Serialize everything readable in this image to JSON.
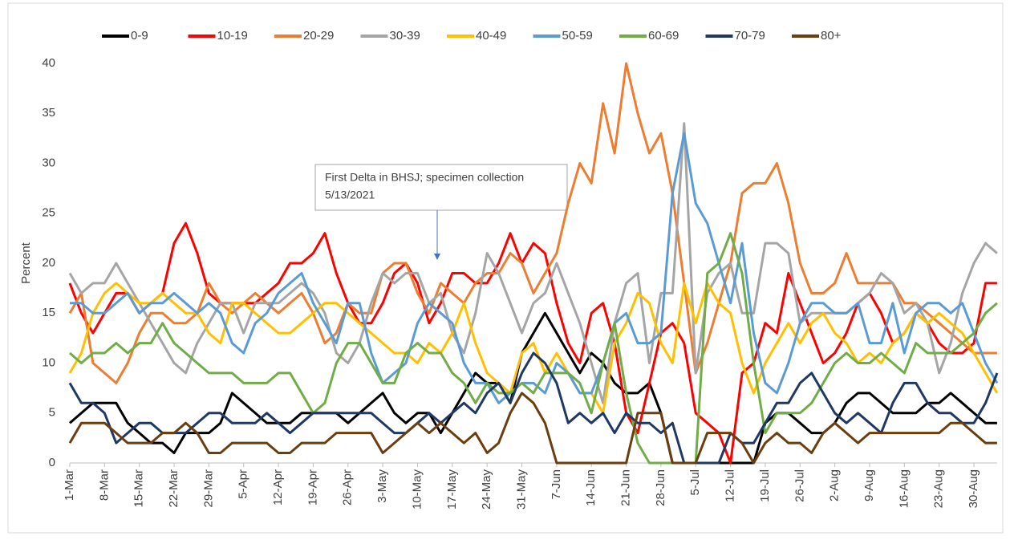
{
  "chart_data": {
    "type": "line",
    "ylabel": "Percent",
    "annotation": [
      "First Delta in BHSJ; specimen collection",
      "5/13/2021"
    ],
    "legend": "top",
    "ylim": [
      0,
      40
    ],
    "yticks": [
      0,
      5,
      10,
      15,
      20,
      25,
      30,
      35,
      40
    ],
    "categories": [
      "1-Mar",
      null,
      null,
      "8-Mar",
      null,
      null,
      "15-Mar",
      null,
      null,
      "22-Mar",
      null,
      null,
      "29-Mar",
      null,
      null,
      "5-Apr",
      null,
      null,
      "12-Apr",
      null,
      null,
      "19-Apr",
      null,
      null,
      "26-Apr",
      null,
      null,
      "3-May",
      null,
      null,
      "10-May",
      null,
      null,
      "17-May",
      null,
      null,
      "24-May",
      null,
      null,
      "31-May",
      null,
      null,
      "7-Jun",
      null,
      null,
      "14-Jun",
      null,
      null,
      "21-Jun",
      null,
      null,
      "28-Jun",
      null,
      null,
      "5-Jul",
      null,
      null,
      "12-Jul",
      null,
      null,
      "19-Jul",
      null,
      null,
      "26-Jul",
      null,
      null,
      "2-Aug",
      null,
      null,
      "9-Aug",
      null,
      null,
      "16-Aug",
      null,
      null,
      "23-Aug",
      null,
      null,
      "30-Aug",
      null,
      null
    ],
    "series": [
      {
        "name": "0-9",
        "color": "#000000",
        "values": [
          4,
          5,
          6,
          6,
          6,
          4,
          3,
          2,
          2,
          1,
          3,
          3,
          3,
          4,
          7,
          6,
          5,
          4,
          4,
          4,
          5,
          5,
          5,
          5,
          4,
          5,
          6,
          7,
          5,
          4,
          5,
          5,
          3,
          5,
          7,
          9,
          8,
          8,
          6,
          11,
          13,
          15,
          13,
          11,
          9,
          11,
          10,
          8,
          7,
          7,
          8,
          5,
          0,
          0,
          0,
          0,
          0,
          0,
          0,
          0,
          4,
          5,
          5,
          4,
          3,
          3,
          4,
          6,
          7,
          7,
          6,
          5,
          5,
          5,
          6,
          6,
          7,
          6,
          5,
          4,
          4
        ]
      },
      {
        "name": "10-19",
        "color": "#ff0000",
        "values": [
          18,
          15,
          13,
          15,
          17,
          17,
          15,
          16,
          17,
          22,
          24,
          21,
          17,
          16,
          16,
          16,
          16,
          17,
          18,
          20,
          20,
          21,
          23,
          19,
          16,
          14,
          14,
          16,
          19,
          20,
          18,
          14,
          16,
          19,
          19,
          18,
          18,
          20,
          23,
          20,
          22,
          21,
          16,
          12,
          10,
          15,
          16,
          12,
          5,
          3,
          8,
          13,
          14,
          12,
          5,
          4,
          3,
          0,
          9,
          10,
          14,
          13,
          19,
          16,
          13,
          10,
          11,
          13,
          16,
          17,
          15,
          12,
          13,
          15,
          14,
          12,
          11,
          11,
          12,
          18,
          18
        ]
      },
      {
        "name": "20-29",
        "color": "#ed7d31",
        "values": [
          15,
          17,
          10,
          9,
          8,
          10,
          13,
          15,
          15,
          14,
          14,
          15,
          18,
          16,
          15,
          16,
          17,
          16,
          15,
          16,
          17,
          15,
          12,
          13,
          16,
          15,
          15,
          19,
          20,
          20,
          17,
          15,
          18,
          17,
          16,
          18,
          19,
          19,
          21,
          20,
          17,
          19,
          21,
          26,
          30,
          28,
          36,
          31,
          40,
          35,
          31,
          33,
          27,
          18,
          9,
          12,
          16,
          20,
          27,
          28,
          28,
          30,
          26,
          20,
          17,
          17,
          18,
          21,
          18,
          18,
          18,
          18,
          16,
          16,
          15,
          14,
          13,
          12,
          11,
          11,
          11
        ]
      },
      {
        "name": "30-39",
        "color": "#a5a5a5",
        "values": [
          19,
          17,
          18,
          18,
          20,
          18,
          16,
          14,
          12,
          10,
          9,
          12,
          14,
          16,
          16,
          13,
          16,
          16,
          16,
          17,
          18,
          17,
          15,
          11,
          10,
          12,
          16,
          19,
          18,
          19,
          19,
          16,
          17,
          13,
          11,
          15,
          21,
          19,
          16,
          13,
          16,
          17,
          20,
          17,
          14,
          10,
          6,
          14,
          18,
          19,
          10,
          17,
          17,
          34,
          9,
          17,
          19,
          20,
          15,
          15,
          22,
          22,
          21,
          14,
          15,
          15,
          15,
          15,
          16,
          17,
          19,
          18,
          15,
          16,
          14,
          9,
          12,
          17,
          20,
          22,
          21
        ]
      },
      {
        "name": "40-49",
        "color": "#ffc000",
        "values": [
          9,
          11,
          15,
          17,
          18,
          17,
          16,
          16,
          17,
          16,
          15,
          15,
          13,
          12,
          16,
          16,
          15,
          14,
          13,
          13,
          14,
          15,
          16,
          16,
          15,
          14,
          13,
          12,
          11,
          11,
          10,
          12,
          11,
          13,
          16,
          12,
          9,
          8,
          7,
          11,
          12,
          9,
          11,
          9,
          7,
          7,
          5,
          12,
          14,
          17,
          16,
          12,
          10,
          18,
          14,
          18,
          16,
          15,
          10,
          7,
          10,
          12,
          14,
          12,
          14,
          15,
          13,
          12,
          10,
          11,
          10,
          12,
          13,
          15,
          14,
          15,
          14,
          13,
          11,
          9,
          7
        ]
      },
      {
        "name": "50-59",
        "color": "#5b9bd5",
        "values": [
          16,
          16,
          15,
          15,
          16,
          17,
          15,
          16,
          16,
          17,
          16,
          15,
          16,
          15,
          12,
          11,
          14,
          15,
          17,
          18,
          19,
          16,
          14,
          12,
          16,
          16,
          11,
          8,
          9,
          10,
          14,
          16,
          15,
          14,
          10,
          8,
          8,
          6,
          7,
          8,
          8,
          7,
          10,
          9,
          7,
          7,
          10,
          14,
          15,
          12,
          12,
          13,
          27,
          33,
          26,
          24,
          20,
          16,
          22,
          13,
          8,
          7,
          10,
          14,
          16,
          16,
          15,
          15,
          16,
          12,
          12,
          16,
          11,
          15,
          16,
          16,
          15,
          16,
          13,
          10,
          8
        ]
      },
      {
        "name": "60-69",
        "color": "#70ad47",
        "values": [
          11,
          10,
          11,
          11,
          12,
          11,
          12,
          12,
          14,
          12,
          11,
          10,
          9,
          9,
          9,
          8,
          8,
          8,
          9,
          9,
          7,
          5,
          6,
          10,
          12,
          12,
          10,
          8,
          8,
          11,
          12,
          11,
          11,
          9,
          8,
          6,
          8,
          7,
          7,
          8,
          7,
          9,
          9,
          9,
          8,
          5,
          10,
          14,
          7,
          2,
          0,
          0,
          0,
          0,
          0,
          19,
          20,
          23,
          19,
          10,
          3,
          5,
          5,
          5,
          6,
          8,
          10,
          11,
          10,
          10,
          11,
          10,
          9,
          12,
          11,
          11,
          11,
          12,
          13,
          15,
          16
        ]
      },
      {
        "name": "70-79",
        "color": "#1f3864",
        "values": [
          8,
          6,
          6,
          5,
          2,
          3,
          4,
          4,
          3,
          3,
          3,
          4,
          5,
          5,
          4,
          4,
          4,
          5,
          4,
          3,
          4,
          5,
          5,
          5,
          5,
          5,
          5,
          4,
          3,
          3,
          4,
          5,
          4,
          5,
          6,
          5,
          7,
          8,
          6,
          9,
          11,
          10,
          8,
          4,
          5,
          4,
          5,
          3,
          5,
          4,
          4,
          3,
          4,
          0,
          0,
          0,
          0,
          3,
          2,
          2,
          4,
          6,
          6,
          8,
          9,
          7,
          5,
          4,
          5,
          4,
          3,
          6,
          8,
          8,
          6,
          5,
          5,
          4,
          4,
          6,
          9
        ]
      },
      {
        "name": "80+",
        "color": "#6b3e0f",
        "values": [
          2,
          4,
          4,
          4,
          3,
          2,
          2,
          2,
          3,
          3,
          4,
          3,
          1,
          1,
          2,
          2,
          2,
          2,
          1,
          1,
          2,
          2,
          2,
          3,
          3,
          3,
          3,
          1,
          2,
          3,
          4,
          3,
          4,
          3,
          2,
          3,
          1,
          2,
          5,
          7,
          6,
          4,
          0,
          0,
          0,
          0,
          0,
          0,
          0,
          5,
          5,
          5,
          0,
          0,
          0,
          3,
          3,
          3,
          2,
          0,
          2,
          3,
          2,
          2,
          1,
          3,
          4,
          3,
          2,
          3,
          3,
          3,
          3,
          3,
          3,
          3,
          4,
          4,
          3,
          2,
          2
        ]
      }
    ]
  }
}
